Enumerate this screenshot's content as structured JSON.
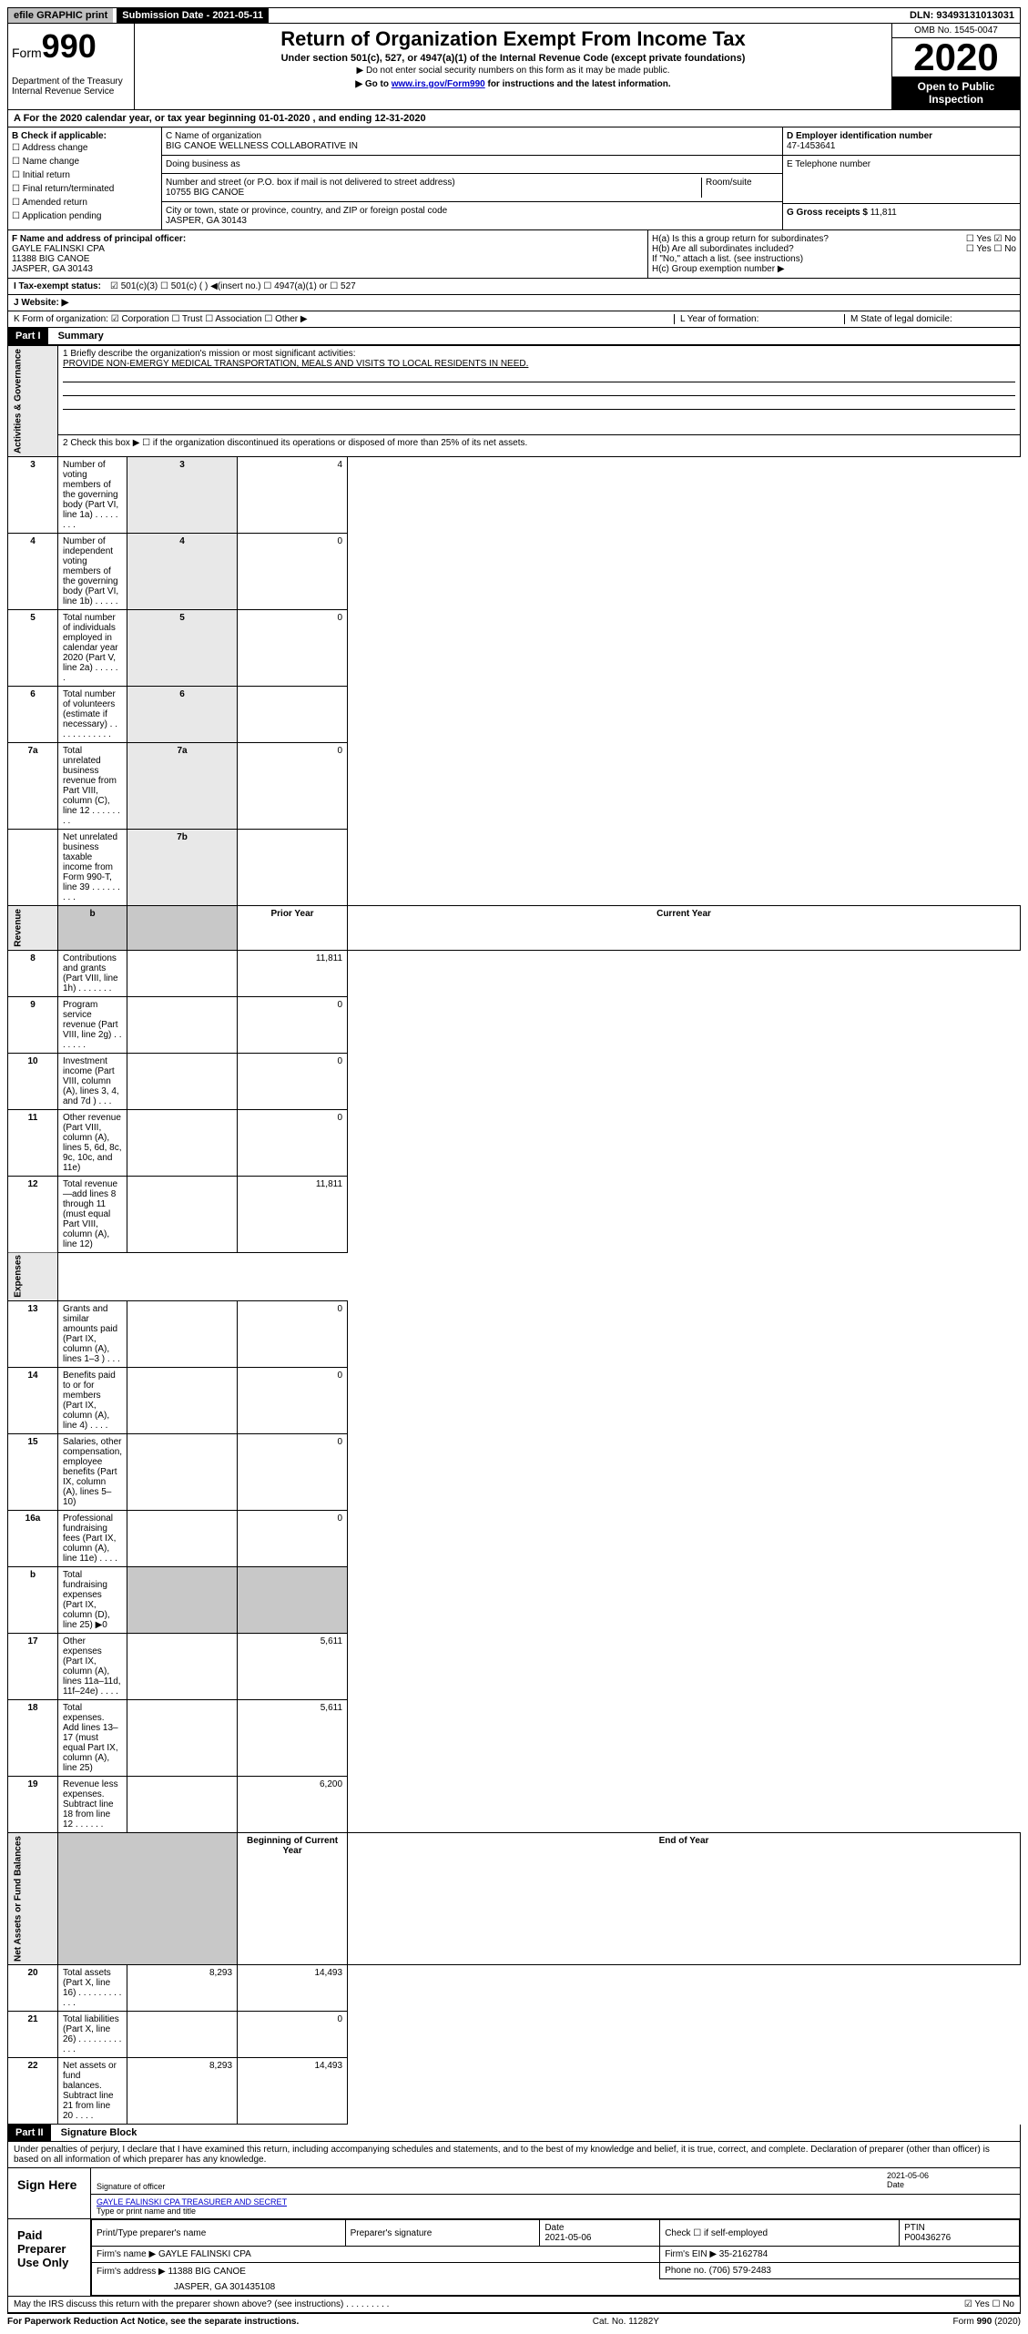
{
  "top": {
    "efile": "efile GRAPHIC print",
    "submission": "Submission Date - 2021-05-11",
    "dln": "DLN: 93493131013031"
  },
  "header": {
    "form_prefix": "Form",
    "form_no": "990",
    "dept": "Department of the Treasury\nInternal Revenue Service",
    "title": "Return of Organization Exempt From Income Tax",
    "subtitle": "Under section 501(c), 527, or 4947(a)(1) of the Internal Revenue Code (except private foundations)",
    "note1": "▶ Do not enter social security numbers on this form as it may be made public.",
    "note2_pre": "▶ Go to ",
    "note2_link": "www.irs.gov/Form990",
    "note2_post": " for instructions and the latest information.",
    "omb": "OMB No. 1545-0047",
    "year": "2020",
    "open": "Open to Public Inspection"
  },
  "sectionA": "A For the 2020 calendar year, or tax year beginning 01-01-2020    , and ending 12-31-2020",
  "B": {
    "label": "B Check if applicable:",
    "opts": [
      "☐ Address change",
      "☐ Name change",
      "☐ Initial return",
      "☐ Final return/terminated",
      "☐ Amended return",
      "☐ Application pending"
    ]
  },
  "C": {
    "name_label": "C Name of organization",
    "name": "BIG CANOE WELLNESS COLLABORATIVE IN",
    "dba_label": "Doing business as",
    "addr_label": "Number and street (or P.O. box if mail is not delivered to street address)",
    "room_label": "Room/suite",
    "addr": "10755 BIG CANOE",
    "city_label": "City or town, state or province, country, and ZIP or foreign postal code",
    "city": "JASPER, GA  30143"
  },
  "D": {
    "label": "D Employer identification number",
    "val": "47-1453641"
  },
  "E": {
    "label": "E Telephone number",
    "val": ""
  },
  "G": {
    "label": "G Gross receipts $ ",
    "val": "11,811"
  },
  "F": {
    "label": "F  Name and address of principal officer:",
    "name": "GAYLE FALINSKI CPA",
    "l1": "11388 BIG CANOE",
    "l2": "JASPER, GA  30143"
  },
  "H": {
    "a": "H(a)  Is this a group return for subordinates?",
    "a_ans": "☐ Yes  ☑ No",
    "b": "H(b)  Are all subordinates included?",
    "b_ans": "☐ Yes  ☐ No",
    "b_note": "If \"No,\" attach a list. (see instructions)",
    "c": "H(c)  Group exemption number ▶"
  },
  "I": {
    "label": "I    Tax-exempt status:",
    "opts": "☑ 501(c)(3)   ☐  501(c) (  ) ◀(insert no.)    ☐ 4947(a)(1) or   ☐ 527"
  },
  "J": {
    "label": "J   Website: ▶"
  },
  "K": {
    "label": "K Form of organization:  ☑ Corporation  ☐ Trust  ☐ Association  ☐ Other ▶"
  },
  "L": {
    "label": "L Year of formation:"
  },
  "M": {
    "label": "M State of legal domicile:"
  },
  "part1": {
    "header": "Part I",
    "title": "Summary"
  },
  "summary": {
    "l1_label": "1  Briefly describe the organization's mission or most significant activities:",
    "l1_text": "PROVIDE NON-EMERGY MEDICAL TRANSPORTATION, MEALS AND VISITS TO LOCAL RESIDENTS IN NEED.",
    "l2": "2   Check this box ▶ ☐  if the organization discontinued its operations or disposed of more than 25% of its net assets.",
    "rows_ag": [
      {
        "n": "3",
        "t": "Number of voting members of the governing body (Part VI, line 1a)  .    .    .    .    .    .    .    .",
        "k": "3",
        "v": "4"
      },
      {
        "n": "4",
        "t": "Number of independent voting members of the governing body (Part VI, line 1b)  .    .    .    .    .",
        "k": "4",
        "v": "0"
      },
      {
        "n": "5",
        "t": "Total number of individuals employed in calendar year 2020 (Part V, line 2a)  .    .    .    .    .    .",
        "k": "5",
        "v": "0"
      },
      {
        "n": "6",
        "t": "Total number of volunteers (estimate if necessary)  .    .    .    .    .    .    .    .    .    .    .    .",
        "k": "6",
        "v": ""
      },
      {
        "n": "7a",
        "t": "Total unrelated business revenue from Part VIII, column (C), line 12  .    .    .    .    .    .    .    .",
        "k": "7a",
        "v": "0"
      },
      {
        "n": "",
        "t": "Net unrelated business taxable income from Form 990-T, line 39   .    .    .    .    .    .    .    .    .",
        "k": "7b",
        "v": ""
      }
    ],
    "col_prior": "Prior Year",
    "col_current": "Current Year",
    "rev_rows": [
      {
        "n": "8",
        "t": "Contributions and grants (Part VIII, line 1h)  .    .    .    .    .    .    .",
        "p": "",
        "c": "11,811"
      },
      {
        "n": "9",
        "t": "Program service revenue (Part VIII, line 2g)  .    .    .    .    .    .    .",
        "p": "",
        "c": "0"
      },
      {
        "n": "10",
        "t": "Investment income (Part VIII, column (A), lines 3, 4, and 7d )  .    .    .",
        "p": "",
        "c": "0"
      },
      {
        "n": "11",
        "t": "Other revenue (Part VIII, column (A), lines 5, 6d, 8c, 9c, 10c, and 11e)",
        "p": "",
        "c": "0"
      },
      {
        "n": "12",
        "t": "Total revenue—add lines 8 through 11 (must equal Part VIII, column (A), line 12)",
        "p": "",
        "c": "11,811"
      }
    ],
    "exp_rows": [
      {
        "n": "13",
        "t": "Grants and similar amounts paid (Part IX, column (A), lines 1–3 )  .    .    .",
        "p": "",
        "c": "0"
      },
      {
        "n": "14",
        "t": "Benefits paid to or for members (Part IX, column (A), line 4)  .    .    .    .",
        "p": "",
        "c": "0"
      },
      {
        "n": "15",
        "t": "Salaries, other compensation, employee benefits (Part IX, column (A), lines 5–10)",
        "p": "",
        "c": "0"
      },
      {
        "n": "16a",
        "t": "Professional fundraising fees (Part IX, column (A), line 11e)  .    .    .    .",
        "p": "",
        "c": "0"
      },
      {
        "n": "b",
        "t": "Total fundraising expenses (Part IX, column (D), line 25) ▶0",
        "p": "gray",
        "c": "gray"
      },
      {
        "n": "17",
        "t": "Other expenses (Part IX, column (A), lines 11a–11d, 11f–24e)  .    .    .    .",
        "p": "",
        "c": "5,611"
      },
      {
        "n": "18",
        "t": "Total expenses. Add lines 13–17 (must equal Part IX, column (A), line 25)",
        "p": "",
        "c": "5,611"
      },
      {
        "n": "19",
        "t": "Revenue less expenses. Subtract line 18 from line 12  .    .    .    .    .    .",
        "p": "",
        "c": "6,200"
      }
    ],
    "col_begin": "Beginning of Current Year",
    "col_end": "End of Year",
    "na_rows": [
      {
        "n": "20",
        "t": "Total assets (Part X, line 16)  .    .    .    .    .    .    .    .    .    .    .    .",
        "p": "8,293",
        "c": "14,493"
      },
      {
        "n": "21",
        "t": "Total liabilities (Part X, line 26)  .    .    .    .    .    .    .    .    .    .    .    .",
        "p": "",
        "c": "0"
      },
      {
        "n": "22",
        "t": "Net assets or fund balances. Subtract line 21 from line 20  .    .    .    .",
        "p": "8,293",
        "c": "14,493"
      }
    ],
    "vert_ag": "Activities & Governance",
    "vert_rev": "Revenue",
    "vert_exp": "Expenses",
    "vert_na": "Net Assets or Fund Balances"
  },
  "part2": {
    "header": "Part II",
    "title": "Signature Block"
  },
  "perjury": "Under penalties of perjury, I declare that I have examined this return, including accompanying schedules and statements, and to the best of my knowledge and belief, it is true, correct, and complete. Declaration of preparer (other than officer) is based on all information of which preparer has any knowledge.",
  "sign": {
    "label": "Sign Here",
    "sig_of": "Signature of officer",
    "date": "2021-05-06",
    "date_l": "Date",
    "name": "GAYLE FALINSKI CPA TREASURER AND SECRET",
    "name_l": "Type or print name and title"
  },
  "paid": {
    "label": "Paid Preparer Use Only",
    "h1": "Print/Type preparer's name",
    "h2": "Preparer's signature",
    "h3": "Date",
    "h3v": "2021-05-06",
    "h4": "Check ☐ if self-employed",
    "h5": "PTIN",
    "h5v": "P00436276",
    "firm_l": "Firm's name      ▶",
    "firm": "GAYLE FALINSKI CPA",
    "ein_l": "Firm's EIN ▶",
    "ein": "35-2162784",
    "addr_l": "Firm's address ▶",
    "addr": "11388 BIG CANOE",
    "addr2": "JASPER, GA  301435108",
    "phone_l": "Phone no.",
    "phone": "(706) 579-2483"
  },
  "discuss": {
    "q": "May the IRS discuss this return with the preparer shown above? (see instructions)   .    .    .    .    .    .    .    .    .",
    "a": "☑ Yes   ☐ No"
  },
  "footer": {
    "l": "For Paperwork Reduction Act Notice, see the separate instructions.",
    "c": "Cat. No. 11282Y",
    "r": "Form 990 (2020)"
  }
}
